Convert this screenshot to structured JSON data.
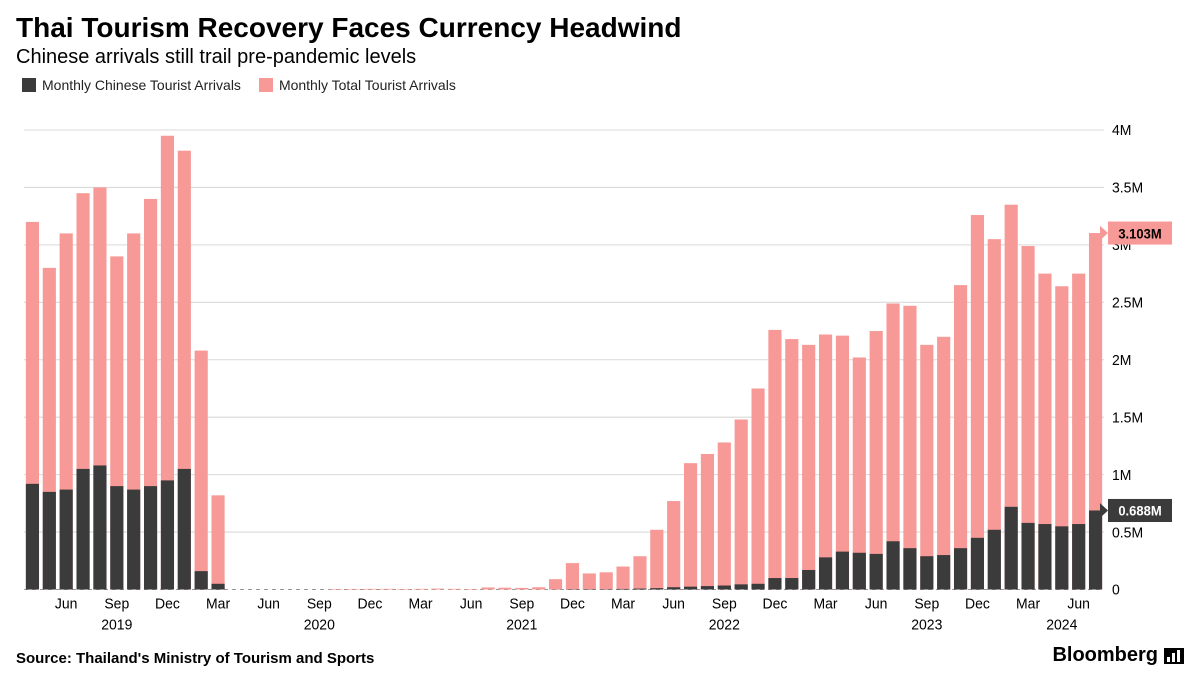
{
  "title": "Thai Tourism Recovery Faces Currency Headwind",
  "subtitle": "Chinese arrivals still trail pre-pandemic levels",
  "legend": [
    {
      "label": "Monthly Chinese Tourist Arrivals",
      "color": "#3b3b3b"
    },
    {
      "label": "Monthly Total Tourist Arrivals",
      "color": "#f79a97"
    }
  ],
  "source": "Source: Thailand's Ministry of Tourism and Sports",
  "brand": "Bloomberg",
  "chart": {
    "type": "bar-stacked",
    "colors": {
      "chinese": "#3b3b3b",
      "total": "#f79a97",
      "grid": "#d9d9d9",
      "zero": "#999999",
      "text": "#000000",
      "callout_chinese": "#3b3b3b",
      "callout_total": "#f79a97"
    },
    "background": "#ffffff",
    "y": {
      "min": 0,
      "max": 4250000,
      "ticks": [
        0,
        500000,
        1000000,
        1500000,
        2000000,
        2500000,
        3000000,
        3500000,
        4000000
      ],
      "tick_labels": [
        "0",
        "0.5M",
        "1M",
        "1.5M",
        "2M",
        "2.5M",
        "3M",
        "3.5M",
        "4M"
      ]
    },
    "x": {
      "month_labels": [
        {
          "index": 2,
          "label": "Jun"
        },
        {
          "index": 5,
          "label": "Sep"
        },
        {
          "index": 8,
          "label": "Dec"
        },
        {
          "index": 11,
          "label": "Mar"
        },
        {
          "index": 14,
          "label": "Jun"
        },
        {
          "index": 17,
          "label": "Sep"
        },
        {
          "index": 20,
          "label": "Dec"
        },
        {
          "index": 23,
          "label": "Mar"
        },
        {
          "index": 26,
          "label": "Jun"
        },
        {
          "index": 29,
          "label": "Sep"
        },
        {
          "index": 32,
          "label": "Dec"
        },
        {
          "index": 35,
          "label": "Mar"
        },
        {
          "index": 38,
          "label": "Jun"
        },
        {
          "index": 41,
          "label": "Sep"
        },
        {
          "index": 44,
          "label": "Dec"
        },
        {
          "index": 47,
          "label": "Mar"
        },
        {
          "index": 50,
          "label": "Jun"
        },
        {
          "index": 53,
          "label": "Sep"
        },
        {
          "index": 56,
          "label": "Dec"
        },
        {
          "index": 59,
          "label": "Mar"
        },
        {
          "index": 62,
          "label": "Jun"
        }
      ],
      "year_labels": [
        {
          "center_index": 5,
          "label": "2019"
        },
        {
          "center_index": 17,
          "label": "2020"
        },
        {
          "center_index": 29,
          "label": "2021"
        },
        {
          "center_index": 41,
          "label": "2022"
        },
        {
          "center_index": 53,
          "label": "2023"
        },
        {
          "center_index": 61,
          "label": "2024"
        }
      ]
    },
    "callouts": [
      {
        "label": "3.103M",
        "value": 3103000,
        "color_key": "callout_total"
      },
      {
        "label": "0.688M",
        "value": 688000,
        "color_key": "callout_chinese"
      }
    ],
    "bar_gap_ratio": 0.22,
    "data": [
      {
        "m": "2019-04",
        "chinese": 920000,
        "total": 3200000
      },
      {
        "m": "2019-05",
        "chinese": 850000,
        "total": 2800000
      },
      {
        "m": "2019-06",
        "chinese": 870000,
        "total": 3100000
      },
      {
        "m": "2019-07",
        "chinese": 1050000,
        "total": 3450000
      },
      {
        "m": "2019-08",
        "chinese": 1080000,
        "total": 3500000
      },
      {
        "m": "2019-09",
        "chinese": 900000,
        "total": 2900000
      },
      {
        "m": "2019-10",
        "chinese": 870000,
        "total": 3100000
      },
      {
        "m": "2019-11",
        "chinese": 900000,
        "total": 3400000
      },
      {
        "m": "2019-12",
        "chinese": 950000,
        "total": 3950000
      },
      {
        "m": "2020-01",
        "chinese": 1050000,
        "total": 3820000
      },
      {
        "m": "2020-02",
        "chinese": 160000,
        "total": 2080000
      },
      {
        "m": "2020-03",
        "chinese": 50000,
        "total": 820000
      },
      {
        "m": "2020-04",
        "chinese": 0,
        "total": 0
      },
      {
        "m": "2020-05",
        "chinese": 0,
        "total": 0
      },
      {
        "m": "2020-06",
        "chinese": 0,
        "total": 0
      },
      {
        "m": "2020-07",
        "chinese": 0,
        "total": 0
      },
      {
        "m": "2020-08",
        "chinese": 0,
        "total": 0
      },
      {
        "m": "2020-09",
        "chinese": 0,
        "total": 0
      },
      {
        "m": "2020-10",
        "chinese": 0,
        "total": 5000
      },
      {
        "m": "2020-11",
        "chinese": 0,
        "total": 5000
      },
      {
        "m": "2020-12",
        "chinese": 0,
        "total": 6000
      },
      {
        "m": "2021-01",
        "chinese": 0,
        "total": 6000
      },
      {
        "m": "2021-02",
        "chinese": 0,
        "total": 5000
      },
      {
        "m": "2021-03",
        "chinese": 0,
        "total": 6000
      },
      {
        "m": "2021-04",
        "chinese": 0,
        "total": 8000
      },
      {
        "m": "2021-05",
        "chinese": 0,
        "total": 6000
      },
      {
        "m": "2021-06",
        "chinese": 0,
        "total": 5000
      },
      {
        "m": "2021-07",
        "chinese": 0,
        "total": 18000
      },
      {
        "m": "2021-08",
        "chinese": 0,
        "total": 16000
      },
      {
        "m": "2021-09",
        "chinese": 0,
        "total": 14000
      },
      {
        "m": "2021-10",
        "chinese": 0,
        "total": 20000
      },
      {
        "m": "2021-11",
        "chinese": 1000,
        "total": 90000
      },
      {
        "m": "2021-12",
        "chinese": 3000,
        "total": 230000
      },
      {
        "m": "2022-01",
        "chinese": 3000,
        "total": 140000
      },
      {
        "m": "2022-02",
        "chinese": 3000,
        "total": 150000
      },
      {
        "m": "2022-03",
        "chinese": 5000,
        "total": 200000
      },
      {
        "m": "2022-04",
        "chinese": 8000,
        "total": 290000
      },
      {
        "m": "2022-05",
        "chinese": 12000,
        "total": 520000
      },
      {
        "m": "2022-06",
        "chinese": 20000,
        "total": 770000
      },
      {
        "m": "2022-07",
        "chinese": 25000,
        "total": 1100000
      },
      {
        "m": "2022-08",
        "chinese": 30000,
        "total": 1180000
      },
      {
        "m": "2022-09",
        "chinese": 35000,
        "total": 1280000
      },
      {
        "m": "2022-10",
        "chinese": 45000,
        "total": 1480000
      },
      {
        "m": "2022-11",
        "chinese": 50000,
        "total": 1750000
      },
      {
        "m": "2022-12",
        "chinese": 100000,
        "total": 2260000
      },
      {
        "m": "2023-01",
        "chinese": 100000,
        "total": 2180000
      },
      {
        "m": "2023-02",
        "chinese": 170000,
        "total": 2130000
      },
      {
        "m": "2023-03",
        "chinese": 280000,
        "total": 2220000
      },
      {
        "m": "2023-04",
        "chinese": 330000,
        "total": 2210000
      },
      {
        "m": "2023-05",
        "chinese": 320000,
        "total": 2020000
      },
      {
        "m": "2023-06",
        "chinese": 310000,
        "total": 2250000
      },
      {
        "m": "2023-07",
        "chinese": 420000,
        "total": 2490000
      },
      {
        "m": "2023-08",
        "chinese": 360000,
        "total": 2470000
      },
      {
        "m": "2023-09",
        "chinese": 290000,
        "total": 2130000
      },
      {
        "m": "2023-10",
        "chinese": 300000,
        "total": 2200000
      },
      {
        "m": "2023-11",
        "chinese": 360000,
        "total": 2650000
      },
      {
        "m": "2023-12",
        "chinese": 450000,
        "total": 3260000
      },
      {
        "m": "2024-01",
        "chinese": 520000,
        "total": 3050000
      },
      {
        "m": "2024-02",
        "chinese": 720000,
        "total": 3350000
      },
      {
        "m": "2024-03",
        "chinese": 580000,
        "total": 2990000
      },
      {
        "m": "2024-04",
        "chinese": 570000,
        "total": 2750000
      },
      {
        "m": "2024-05",
        "chinese": 550000,
        "total": 2640000
      },
      {
        "m": "2024-06",
        "chinese": 570000,
        "total": 2750000
      },
      {
        "m": "2024-07",
        "chinese": 688000,
        "total": 3103000
      }
    ]
  }
}
